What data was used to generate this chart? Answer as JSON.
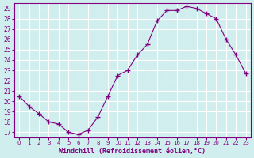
{
  "hours": [
    0,
    1,
    2,
    3,
    4,
    5,
    6,
    7,
    8,
    9,
    10,
    11,
    12,
    13,
    14,
    15,
    16,
    17,
    18,
    19,
    20,
    21,
    22,
    23
  ],
  "values": [
    20.5,
    19.5,
    18.8,
    18.0,
    17.8,
    17.0,
    16.8,
    17.2,
    18.5,
    20.5,
    22.5,
    23.0,
    24.5,
    25.5,
    27.8,
    28.8,
    28.8,
    29.2,
    29.0,
    28.5,
    28.0,
    26.0,
    24.5,
    22.7
  ],
  "line_color": "#800080",
  "marker": "+",
  "bg_color": "#d0eeee",
  "grid_color": "#ffffff",
  "xlabel": "Windchill (Refroidissement éolien,°C)",
  "xlabel_color": "#800080",
  "tick_color": "#800080",
  "ylim": [
    16.5,
    29.5
  ],
  "yticks": [
    17,
    18,
    19,
    20,
    21,
    22,
    23,
    24,
    25,
    26,
    27,
    28,
    29
  ],
  "xlim": [
    -0.5,
    23.5
  ],
  "xtick_labels": [
    "0",
    "1",
    "2",
    "3",
    "4",
    "5",
    "6",
    "7",
    "8",
    "9",
    "10",
    "11",
    "12",
    "13",
    "14",
    "15",
    "16",
    "17",
    "18",
    "19",
    "20",
    "21",
    "22",
    "23"
  ]
}
